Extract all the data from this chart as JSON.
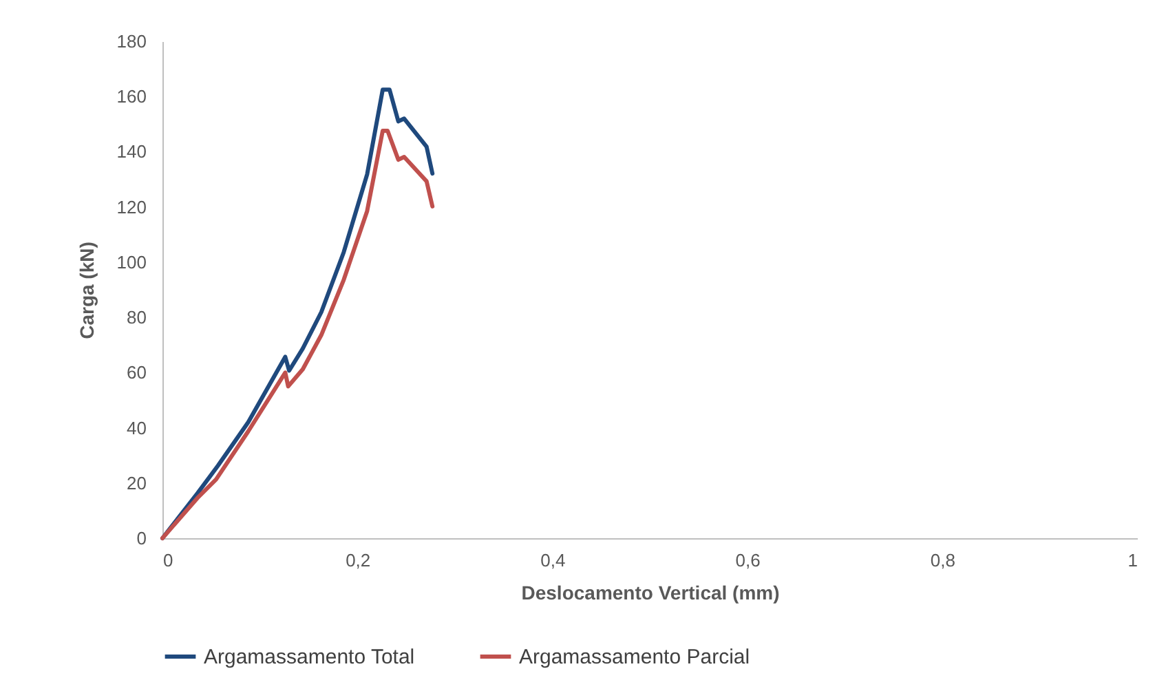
{
  "chart_data": {
    "type": "line",
    "xlabel": "Deslocamento Vertical (mm)",
    "ylabel": "Carga (kN)",
    "xlim": [
      0,
      1
    ],
    "xticks": [
      0,
      {
        "value": 0.2,
        "label": "0,2"
      },
      {
        "value": 0.4,
        "label": "0,4"
      },
      {
        "value": 0.6,
        "label": "0,6"
      },
      {
        "value": 0.8,
        "label": "0,8"
      },
      1
    ],
    "ylim": [
      0,
      180
    ],
    "yticks": [
      0,
      20,
      40,
      60,
      80,
      100,
      120,
      140,
      160,
      180
    ],
    "grid": false,
    "legend": "bottom",
    "marker": "none",
    "line_style": "solid",
    "series": [
      {
        "name": "Argamassamento Total",
        "color": "#1f497d",
        "x": [
          0,
          0.036,
          0.057,
          0.088,
          0.126,
          0.13,
          0.144,
          0.163,
          0.186,
          0.21,
          0.226,
          0.233,
          0.242,
          0.248,
          0.271,
          0.277
        ],
        "values": [
          0,
          16.3,
          26.3,
          42,
          65.7,
          60.7,
          68.7,
          81.9,
          103.6,
          131.8,
          162.5,
          162.5,
          151,
          152,
          141.8,
          132.1
        ]
      },
      {
        "name": "Argamassamento Parcial",
        "color": "#c0504d",
        "x": [
          0,
          0.036,
          0.055,
          0.088,
          0.126,
          0.129,
          0.144,
          0.163,
          0.186,
          0.21,
          0.226,
          0.231,
          0.242,
          0.248,
          0.271,
          0.277
        ],
        "values": [
          0,
          14.6,
          21.3,
          38.7,
          60,
          55,
          61.2,
          73.6,
          93.6,
          118.5,
          147.6,
          147.6,
          137.1,
          138.1,
          129.3,
          120.2
        ]
      }
    ]
  }
}
